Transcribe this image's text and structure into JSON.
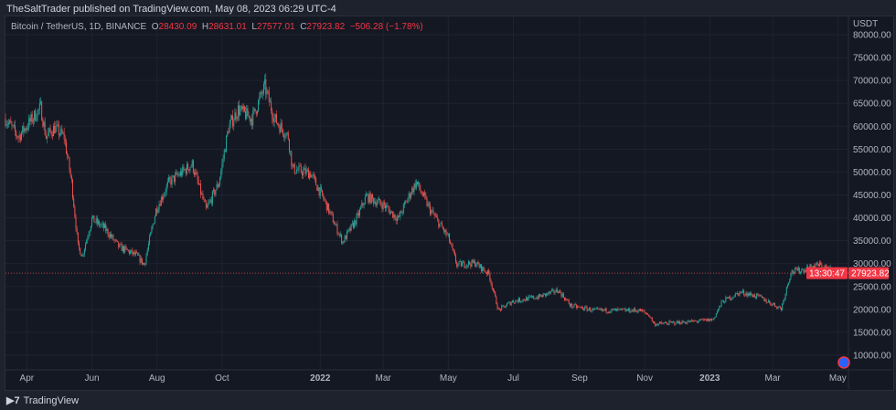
{
  "header": {
    "published": "TheSaltTrader published on TradingView.com, May 08, 2023 06:29 UTC-4"
  },
  "legend": {
    "symbol": "Bitcoin / TetherUS, 1D, BINANCE",
    "o_label": "O",
    "o": "28430.09",
    "h_label": "H",
    "h": "28631.01",
    "l_label": "L",
    "l": "27577.01",
    "c_label": "C",
    "c": "27923.82",
    "change": "−506.28 (−1.78%)"
  },
  "footer": {
    "brand": "TradingView"
  },
  "colors": {
    "up": "#26a69a",
    "down": "#ef5350",
    "background": "#141823",
    "price_tag": "#f23645"
  },
  "chart_data": {
    "type": "candlestick",
    "currency": "USDT",
    "ylim": [
      5000,
      82000
    ],
    "y_ticks": [
      "80000.00",
      "75000.00",
      "70000.00",
      "65000.00",
      "60000.00",
      "55000.00",
      "50000.00",
      "45000.00",
      "40000.00",
      "35000.00",
      "30000.00",
      "25000.00",
      "20000.00",
      "15000.00",
      "10000.00"
    ],
    "x_range": [
      "2021-03-12",
      "2023-05-11"
    ],
    "x_ticks": [
      {
        "label": "Apr",
        "date": "2021-04-01"
      },
      {
        "label": "Jun",
        "date": "2021-06-01"
      },
      {
        "label": "Aug",
        "date": "2021-08-01"
      },
      {
        "label": "Oct",
        "date": "2021-10-01"
      },
      {
        "label": "2022",
        "date": "2022-01-01"
      },
      {
        "label": "Mar",
        "date": "2022-03-01"
      },
      {
        "label": "May",
        "date": "2022-05-01"
      },
      {
        "label": "Jul",
        "date": "2022-07-01"
      },
      {
        "label": "Sep",
        "date": "2022-09-01"
      },
      {
        "label": "Nov",
        "date": "2022-11-01"
      },
      {
        "label": "2023",
        "date": "2023-01-01"
      },
      {
        "label": "Mar",
        "date": "2023-03-01"
      },
      {
        "label": "May",
        "date": "2023-05-01"
      }
    ],
    "last_price": "27923.82",
    "countdown": "13:30:47",
    "approx_closes": [
      [
        "2021-03-12",
        61650
      ],
      [
        "2021-03-24",
        57670
      ],
      [
        "2021-04-14",
        64050
      ],
      [
        "2021-04-19",
        57670
      ],
      [
        "2021-04-27",
        59660
      ],
      [
        "2021-05-06",
        57670
      ],
      [
        "2021-05-13",
        47700
      ],
      [
        "2021-05-19",
        33740
      ],
      [
        "2021-05-23",
        31750
      ],
      [
        "2021-06-01",
        39720
      ],
      [
        "2021-06-13",
        37730
      ],
      [
        "2021-06-26",
        33740
      ],
      [
        "2021-07-13",
        31750
      ],
      [
        "2021-07-20",
        29750
      ],
      [
        "2021-07-31",
        41720
      ],
      [
        "2021-08-12",
        47700
      ],
      [
        "2021-09-03",
        51690
      ],
      [
        "2021-09-16",
        41720
      ],
      [
        "2021-09-28",
        47700
      ],
      [
        "2021-10-07",
        59660
      ],
      [
        "2021-10-16",
        63650
      ],
      [
        "2021-10-29",
        61650
      ],
      [
        "2021-11-10",
        68630
      ],
      [
        "2021-11-19",
        61650
      ],
      [
        "2021-12-02",
        57670
      ],
      [
        "2021-12-06",
        50690
      ],
      [
        "2021-12-23",
        49690
      ],
      [
        "2022-01-05",
        43710
      ],
      [
        "2022-01-22",
        34740
      ],
      [
        "2022-02-04",
        39720
      ],
      [
        "2022-02-13",
        44700
      ],
      [
        "2022-03-02",
        42710
      ],
      [
        "2022-03-15",
        39720
      ],
      [
        "2022-03-27",
        45700
      ],
      [
        "2022-04-01",
        47700
      ],
      [
        "2022-04-14",
        41720
      ],
      [
        "2022-05-01",
        35730
      ],
      [
        "2022-05-09",
        29750
      ],
      [
        "2022-05-26",
        30150
      ],
      [
        "2022-06-08",
        27760
      ],
      [
        "2022-06-17",
        19780
      ],
      [
        "2022-06-30",
        21770
      ],
      [
        "2022-07-25",
        22770
      ],
      [
        "2022-08-12",
        24170
      ],
      [
        "2022-08-24",
        20780
      ],
      [
        "2022-09-15",
        19780
      ],
      [
        "2022-10-28",
        19780
      ],
      [
        "2022-11-05",
        18780
      ],
      [
        "2022-11-10",
        16790
      ],
      [
        "2022-12-18",
        17390
      ],
      [
        "2023-01-04",
        17790
      ],
      [
        "2023-01-13",
        21770
      ],
      [
        "2023-01-30",
        23770
      ],
      [
        "2023-02-16",
        22770
      ],
      [
        "2023-03-09",
        20180
      ],
      [
        "2023-03-18",
        28150
      ],
      [
        "2023-03-31",
        28750
      ],
      [
        "2023-04-13",
        29750
      ],
      [
        "2023-04-30",
        28150
      ],
      [
        "2023-05-08",
        27924
      ]
    ]
  }
}
